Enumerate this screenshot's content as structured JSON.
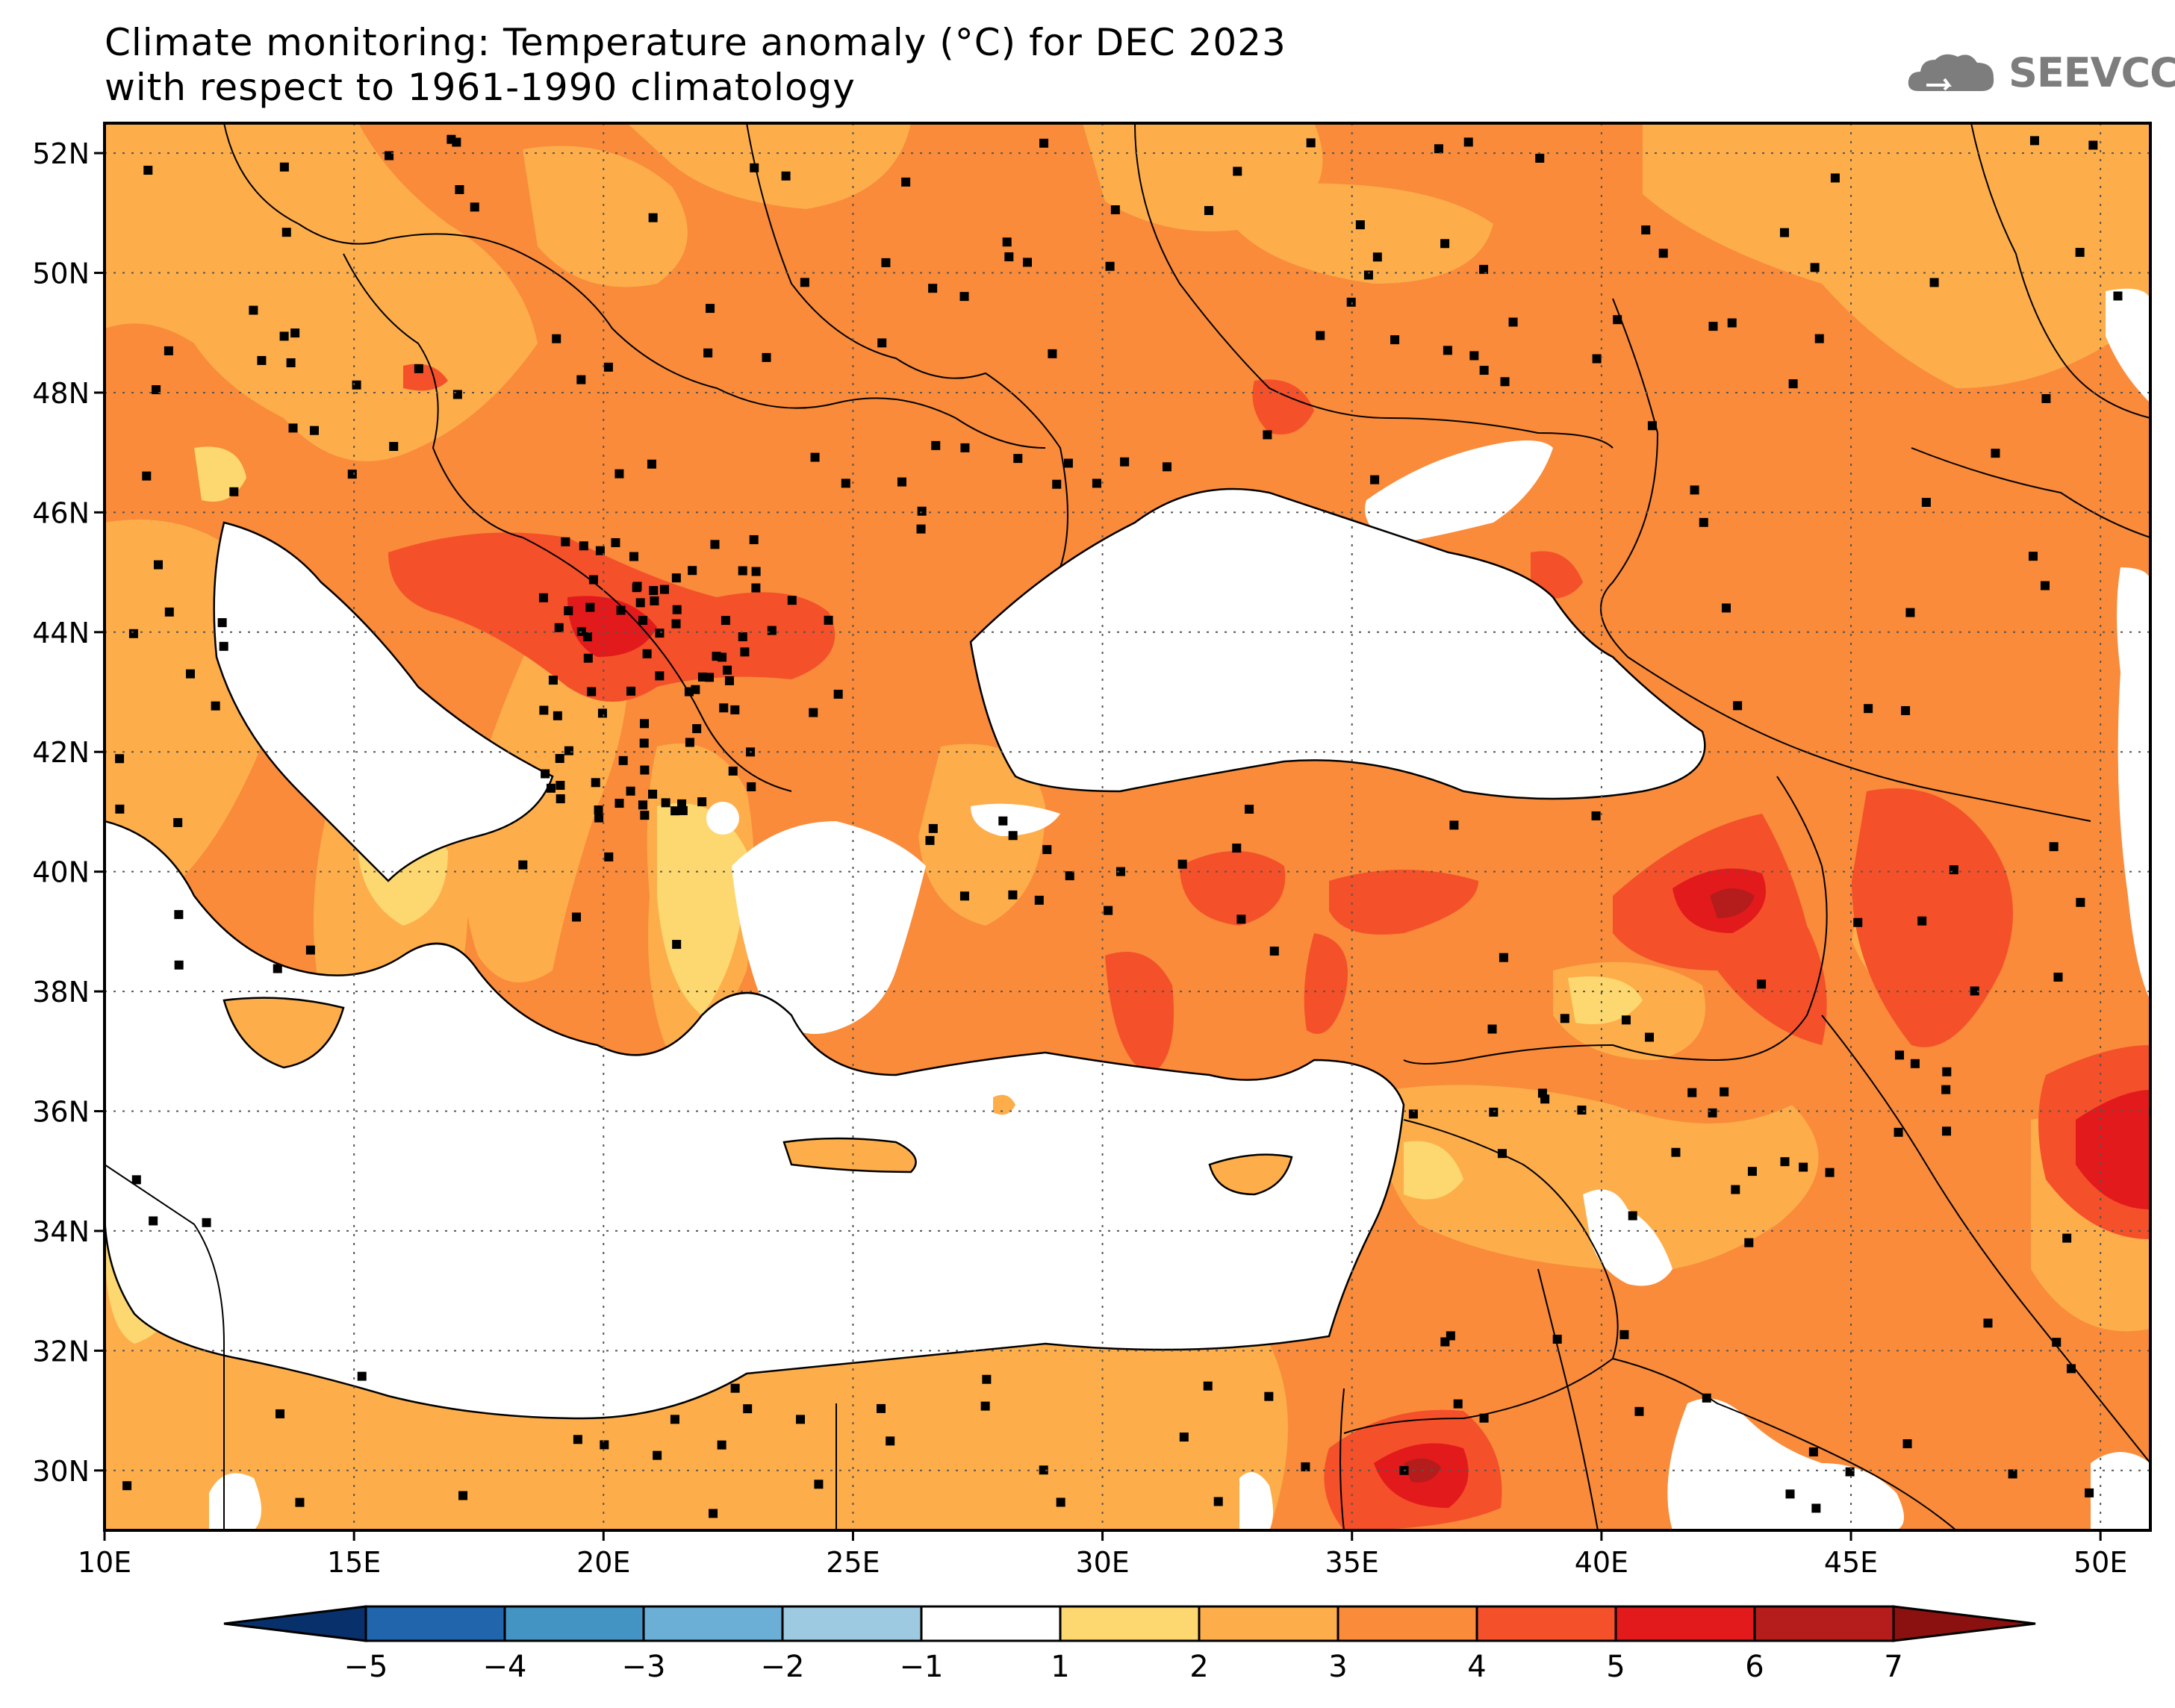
{
  "title_line1": "Climate monitoring: Temperature anomaly (°C) for DEC 2023",
  "title_line2": "with respect to 1961-1990 climatology",
  "logo_text": "SEEVCCC",
  "map": {
    "lon_range": [
      10,
      51
    ],
    "lat_range": [
      29,
      52.5
    ],
    "lat_labels": [
      "52N",
      "50N",
      "48N",
      "46N",
      "44N",
      "42N",
      "40N",
      "38N",
      "36N",
      "34N",
      "32N",
      "30N"
    ],
    "lon_labels": [
      "10E",
      "15E",
      "20E",
      "25E",
      "30E",
      "35E",
      "40E",
      "45E",
      "50E"
    ]
  },
  "colorbar": {
    "labels": [
      "-5",
      "-4",
      "-3",
      "-2",
      "-1",
      "1",
      "2",
      "3",
      "4",
      "5",
      "6",
      "7"
    ],
    "colors": [
      "#08306b",
      "#2166ac",
      "#4393c3",
      "#6baed6",
      "#9ecae1",
      "#ffffff",
      "#fdd870",
      "#fdae4b",
      "#f98b3a",
      "#f4502a",
      "#e31a1c",
      "#b51c1c",
      "#8b1010"
    ]
  },
  "palette": {
    "c1_2": "#fdd870",
    "c2_3": "#fdae4b",
    "c3_4": "#f98b3a",
    "c4_5": "#f4502a",
    "c5_6": "#e31a1c",
    "c6_7": "#b51c1c",
    "sea": "#ffffff"
  }
}
